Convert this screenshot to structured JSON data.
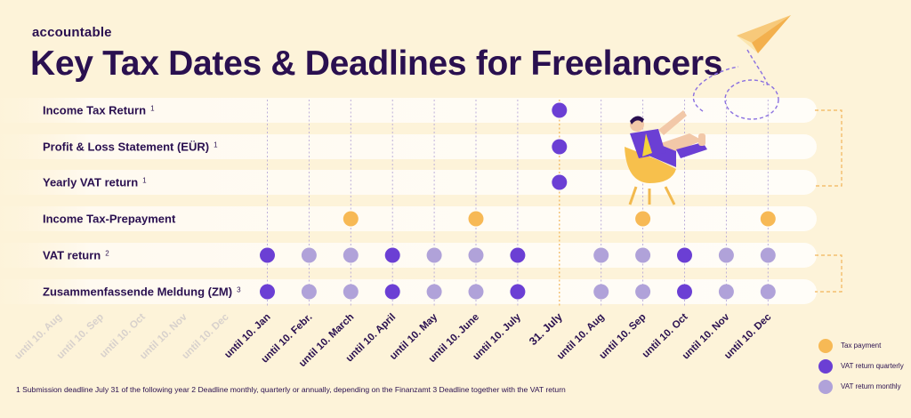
{
  "brand": "accountable",
  "title": "Key Tax Dates & Deadlines for Freelancers",
  "colors": {
    "tax_payment": "#f7b955",
    "vat_quarterly": "#6b3fd4",
    "vat_monthly": "#b0a2d9",
    "text": "#2a1050"
  },
  "rows": [
    {
      "label": "Income Tax Return",
      "sup": "1"
    },
    {
      "label": "Profit & Loss Statement (EÜR)",
      "sup": "1"
    },
    {
      "label": "Yearly VAT return",
      "sup": "1"
    },
    {
      "label": "Income Tax-Prepayment",
      "sup": ""
    },
    {
      "label": "VAT return",
      "sup": "2"
    },
    {
      "label": "Zusammenfassende Meldung (ZM)",
      "sup": "3"
    }
  ],
  "columns": [
    {
      "label": "until 10. Aug",
      "faded": true
    },
    {
      "label": "until 10. Sep",
      "faded": true
    },
    {
      "label": "until 10. Oct",
      "faded": true
    },
    {
      "label": "until 10. Nov",
      "faded": true
    },
    {
      "label": "until 10. Dec",
      "faded": true
    },
    {
      "label": "until 10. Jan",
      "faded": false
    },
    {
      "label": "until 10. Febr.",
      "faded": false
    },
    {
      "label": "until 10. March",
      "faded": false
    },
    {
      "label": "until 10. April",
      "faded": false
    },
    {
      "label": "until 10. May",
      "faded": false
    },
    {
      "label": "until 10. June",
      "faded": false
    },
    {
      "label": "until 10. July",
      "faded": false
    },
    {
      "label": "31. July",
      "faded": false,
      "strong": true
    },
    {
      "label": "until 10. Aug",
      "faded": false
    },
    {
      "label": "until 10. Sep",
      "faded": false
    },
    {
      "label": "until 10. Oct",
      "faded": false
    },
    {
      "label": "until 10. Nov",
      "faded": false
    },
    {
      "label": "until 10. Dec",
      "faded": false
    }
  ],
  "dots": [
    {
      "row": 0,
      "col": "31. July",
      "kind": "vat_quarterly"
    },
    {
      "row": 1,
      "col": "31. July",
      "kind": "vat_quarterly"
    },
    {
      "row": 2,
      "col": "31. July",
      "kind": "vat_quarterly"
    },
    {
      "row": 3,
      "col": "until 10. March",
      "kind": "tax_payment"
    },
    {
      "row": 3,
      "col": "until 10. June",
      "kind": "tax_payment"
    },
    {
      "row": 3,
      "col": "until 10. Sep",
      "kind": "tax_payment"
    },
    {
      "row": 3,
      "col": "until 10. Dec",
      "kind": "tax_payment"
    },
    {
      "row": 4,
      "col": "until 10. Jan",
      "kind": "vat_quarterly"
    },
    {
      "row": 4,
      "col": "until 10. Febr.",
      "kind": "vat_monthly"
    },
    {
      "row": 4,
      "col": "until 10. March",
      "kind": "vat_monthly"
    },
    {
      "row": 4,
      "col": "until 10. April",
      "kind": "vat_quarterly"
    },
    {
      "row": 4,
      "col": "until 10. May",
      "kind": "vat_monthly"
    },
    {
      "row": 4,
      "col": "until 10. June",
      "kind": "vat_monthly"
    },
    {
      "row": 4,
      "col": "until 10. July",
      "kind": "vat_quarterly"
    },
    {
      "row": 4,
      "col": "until 10. Aug",
      "kind": "vat_monthly"
    },
    {
      "row": 4,
      "col": "until 10. Sep",
      "kind": "vat_monthly"
    },
    {
      "row": 4,
      "col": "until 10. Oct",
      "kind": "vat_quarterly"
    },
    {
      "row": 4,
      "col": "until 10. Nov",
      "kind": "vat_monthly"
    },
    {
      "row": 4,
      "col": "until 10. Dec",
      "kind": "vat_monthly"
    },
    {
      "row": 5,
      "col": "until 10. Jan",
      "kind": "vat_quarterly"
    },
    {
      "row": 5,
      "col": "until 10. Febr.",
      "kind": "vat_monthly"
    },
    {
      "row": 5,
      "col": "until 10. March",
      "kind": "vat_monthly"
    },
    {
      "row": 5,
      "col": "until 10. April",
      "kind": "vat_quarterly"
    },
    {
      "row": 5,
      "col": "until 10. May",
      "kind": "vat_monthly"
    },
    {
      "row": 5,
      "col": "until 10. June",
      "kind": "vat_monthly"
    },
    {
      "row": 5,
      "col": "until 10. July",
      "kind": "vat_quarterly"
    },
    {
      "row": 5,
      "col": "until 10. Aug",
      "kind": "vat_monthly"
    },
    {
      "row": 5,
      "col": "until 10. Sep",
      "kind": "vat_monthly"
    },
    {
      "row": 5,
      "col": "until 10. Oct",
      "kind": "vat_quarterly"
    },
    {
      "row": 5,
      "col": "until 10. Nov",
      "kind": "vat_monthly"
    },
    {
      "row": 5,
      "col": "until 10. Dec",
      "kind": "vat_monthly"
    }
  ],
  "legend": [
    {
      "kind": "tax_payment",
      "label": "Tax payment"
    },
    {
      "kind": "vat_quarterly",
      "label": "VAT return quarterly"
    },
    {
      "kind": "vat_monthly",
      "label": "VAT return monthly"
    }
  ],
  "footnote": "1 Submission deadline July 31 of the following year 2 Deadline monthly, quarterly or annually, depending on the Finanzamt  3 Deadline together with the VAT return"
}
